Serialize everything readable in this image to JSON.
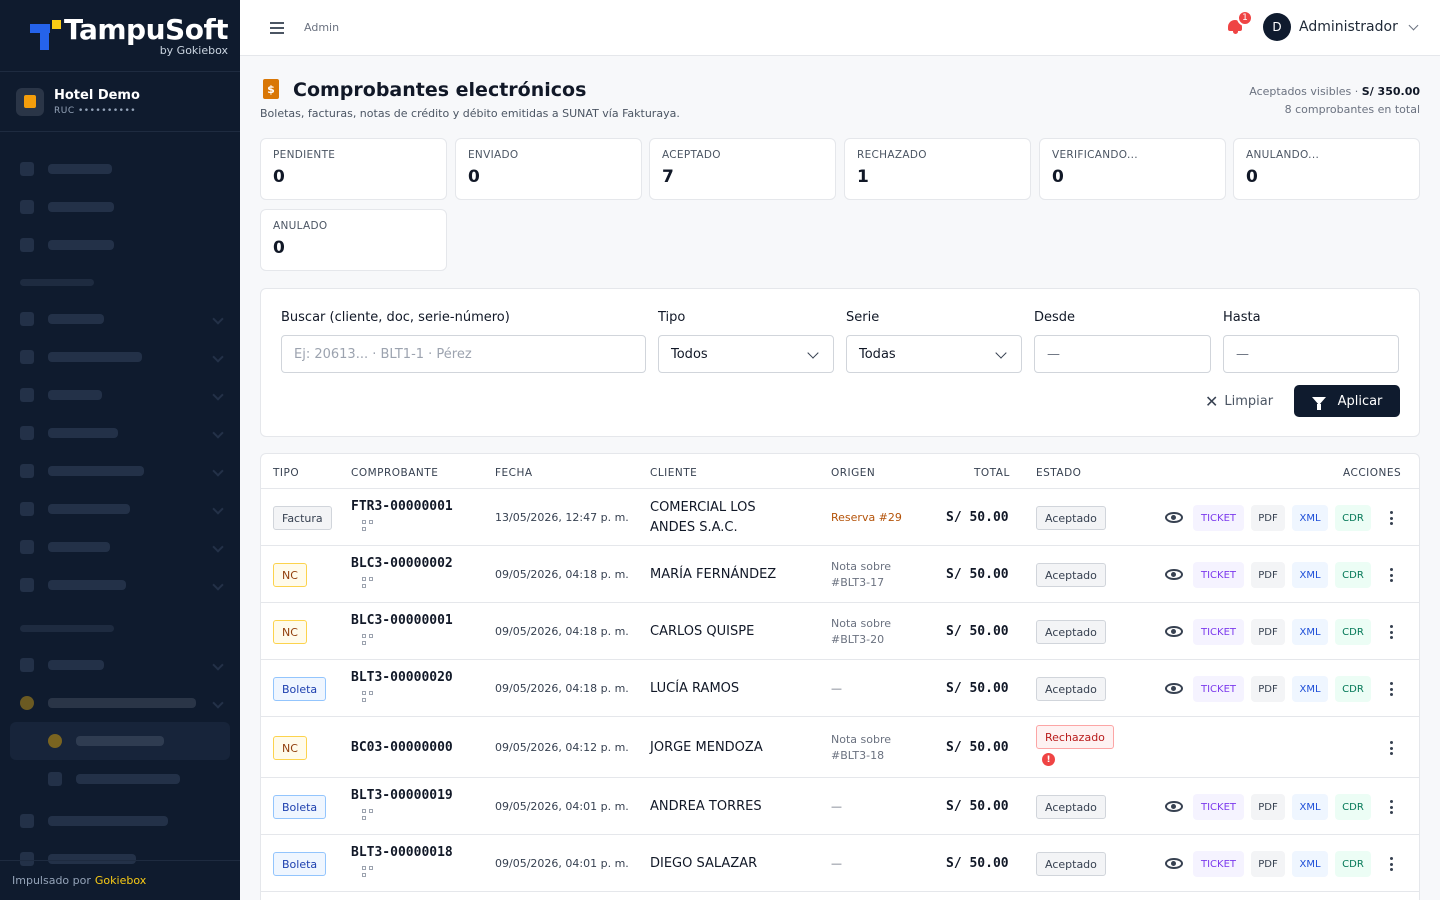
{
  "brand": {
    "name": "TampuSoft",
    "byline": "by Gokiebox"
  },
  "hotel": {
    "name": "Hotel Demo",
    "ruc": "RUC ••••••••••"
  },
  "sidebar_footer": {
    "prefix": "Impulsado por",
    "link": "Gokiebox"
  },
  "topbar": {
    "breadcrumb": "Admin",
    "notifications": "1",
    "user_initial": "D",
    "user_name": "Administrador"
  },
  "page": {
    "title": "Comprobantes electrónicos",
    "subtitle": "Boletas, facturas, notas de crédito y débito emitidas a SUNAT vía Fakturaya.",
    "summary_label": "Aceptados visibles ·",
    "summary_amount": "S/ 350.00",
    "summary_count": "8 comprobantes en total"
  },
  "stats": [
    {
      "label": "PENDIENTE",
      "value": "0"
    },
    {
      "label": "ENVIADO",
      "value": "0"
    },
    {
      "label": "ACEPTADO",
      "value": "7"
    },
    {
      "label": "RECHAZADO",
      "value": "1"
    },
    {
      "label": "VERIFICANDO...",
      "value": "0"
    },
    {
      "label": "ANULANDO...",
      "value": "0"
    },
    {
      "label": "ANULADO",
      "value": "0"
    }
  ],
  "filters": {
    "search_label": "Buscar (cliente, doc, serie-número)",
    "search_placeholder": "Ej: 20613... · BLT1-1 · Pérez",
    "tipo_label": "Tipo",
    "tipo_value": "Todos",
    "serie_label": "Serie",
    "serie_value": "Todas",
    "desde_label": "Desde",
    "desde_value": "—",
    "hasta_label": "Hasta",
    "hasta_value": "—",
    "clear_label": "Limpiar",
    "apply_label": "Aplicar"
  },
  "table": {
    "headers": {
      "tipo": "TIPO",
      "comprobante": "COMPROBANTE",
      "fecha": "FECHA",
      "cliente": "CLIENTE",
      "origen": "ORIGEN",
      "total": "TOTAL",
      "estado": "ESTADO",
      "acciones": "ACCIONES"
    },
    "action_labels": {
      "ticket": "TICKET",
      "pdf": "PDF",
      "xml": "XML",
      "cdr": "CDR"
    },
    "rows": [
      {
        "tipo": "Factura",
        "comprobante": "FTR3-00000001",
        "fecha": "13/05/2026, 12:47 p. m.",
        "cliente": "COMERCIAL LOS ANDES S.A.C.",
        "origen": "Reserva #29",
        "origen_link": true,
        "total": "S/ 50.00",
        "estado": "Aceptado",
        "qr": true,
        "actions": true
      },
      {
        "tipo": "NC",
        "comprobante": "BLC3-00000002",
        "fecha": "09/05/2026, 04:18 p. m.",
        "cliente": "MARÍA FERNÁNDEZ",
        "origen": "Nota sobre #BLT3-17",
        "origen_link": false,
        "total": "S/ 50.00",
        "estado": "Aceptado",
        "qr": true,
        "actions": true
      },
      {
        "tipo": "NC",
        "comprobante": "BLC3-00000001",
        "fecha": "09/05/2026, 04:18 p. m.",
        "cliente": "CARLOS QUISPE",
        "origen": "Nota sobre #BLT3-20",
        "origen_link": false,
        "total": "S/ 50.00",
        "estado": "Aceptado",
        "qr": true,
        "actions": true
      },
      {
        "tipo": "Boleta",
        "comprobante": "BLT3-00000020",
        "fecha": "09/05/2026, 04:18 p. m.",
        "cliente": "LUCÍA RAMOS",
        "origen": "—",
        "origen_link": false,
        "total": "S/ 50.00",
        "estado": "Aceptado",
        "qr": true,
        "actions": true
      },
      {
        "tipo": "NC",
        "comprobante": "BC03-00000000",
        "fecha": "09/05/2026, 04:12 p. m.",
        "cliente": "JORGE MENDOZA",
        "origen": "Nota sobre #BLT3-18",
        "origen_link": false,
        "total": "S/ 50.00",
        "estado": "Rechazado",
        "qr": false,
        "actions": false
      },
      {
        "tipo": "Boleta",
        "comprobante": "BLT3-00000019",
        "fecha": "09/05/2026, 04:01 p. m.",
        "cliente": "ANDREA TORRES",
        "origen": "—",
        "origen_link": false,
        "total": "S/ 50.00",
        "estado": "Aceptado",
        "qr": true,
        "actions": true
      },
      {
        "tipo": "Boleta",
        "comprobante": "BLT3-00000018",
        "fecha": "09/05/2026, 04:01 p. m.",
        "cliente": "DIEGO SALAZAR",
        "origen": "—",
        "origen_link": false,
        "total": "S/ 50.00",
        "estado": "Aceptado",
        "qr": true,
        "actions": true
      }
    ]
  }
}
